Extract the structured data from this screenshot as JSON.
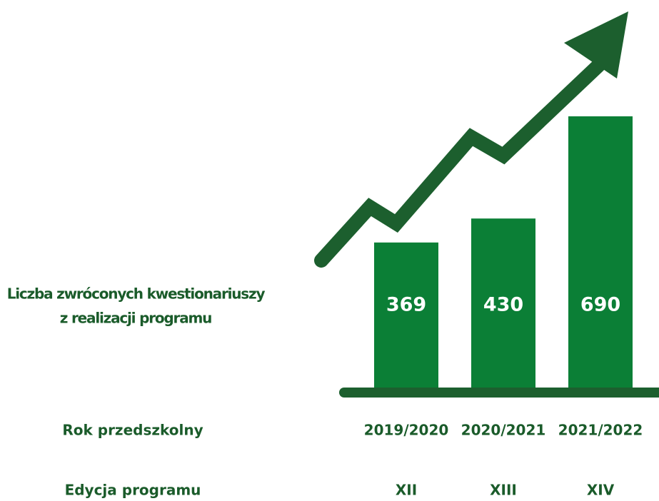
{
  "chart_data": {
    "type": "bar",
    "value_caption": [
      "Liczba zwróconych kwestionariuszy",
      "z realizacji programu"
    ],
    "category_caption": "Rok przedszkolny",
    "edition_caption": "Edycja programu",
    "categories": [
      "2019/2020",
      "2020/2021",
      "2021/2022"
    ],
    "editions": [
      "XII",
      "XIII",
      "XIV"
    ],
    "values": [
      369,
      430,
      690
    ],
    "color": "#0b7f36"
  }
}
